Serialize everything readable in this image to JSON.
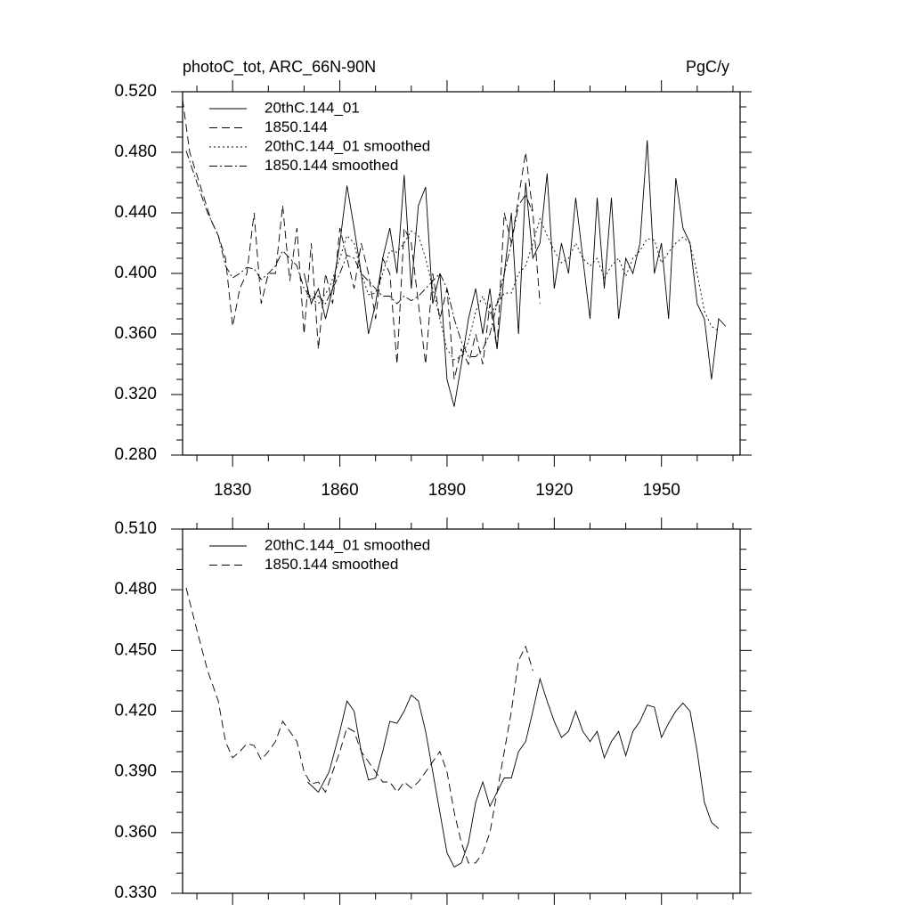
{
  "chart_data": [
    {
      "type": "line",
      "title": "photoC_tot, ARC_66N-90N",
      "y_units": "PgC/y",
      "xlim": [
        1816,
        1972
      ],
      "xticks": [
        1830,
        1860,
        1890,
        1920,
        1950
      ],
      "xminorticks": [
        1820,
        1840,
        1850,
        1870,
        1880,
        1900,
        1910,
        1930,
        1940,
        1960,
        1970
      ],
      "ylim": [
        0.28,
        0.52
      ],
      "yticks": [
        {
          "value": 0.28,
          "label": "0.280"
        },
        {
          "value": 0.32,
          "label": "0.320"
        },
        {
          "value": 0.36,
          "label": "0.360"
        },
        {
          "value": 0.4,
          "label": "0.400"
        },
        {
          "value": 0.44,
          "label": "0.440"
        },
        {
          "value": 0.48,
          "label": "0.480"
        },
        {
          "value": 0.52,
          "label": "0.520"
        }
      ],
      "yminorticks": [
        0.29,
        0.3,
        0.31,
        0.33,
        0.34,
        0.35,
        0.37,
        0.38,
        0.39,
        0.41,
        0.42,
        0.43,
        0.45,
        0.46,
        0.47,
        0.49,
        0.5,
        0.51
      ],
      "series": [
        {
          "name": "20thC.144_01",
          "color": "#000000",
          "line_style": "solid",
          "x": [
            1850,
            1852,
            1854,
            1856,
            1858,
            1860,
            1862,
            1864,
            1866,
            1868,
            1870,
            1872,
            1874,
            1876,
            1878,
            1880,
            1882,
            1884,
            1886,
            1888,
            1890,
            1892,
            1894,
            1896,
            1898,
            1900,
            1902,
            1904,
            1906,
            1908,
            1910,
            1912,
            1914,
            1916,
            1918,
            1920,
            1922,
            1924,
            1926,
            1928,
            1930,
            1932,
            1934,
            1936,
            1938,
            1940,
            1942,
            1944,
            1946,
            1948,
            1950,
            1952,
            1954,
            1956,
            1958,
            1960,
            1962,
            1964,
            1966,
            1968
          ],
          "values": [
            0.4,
            0.38,
            0.39,
            0.37,
            0.39,
            0.42,
            0.458,
            0.43,
            0.4,
            0.36,
            0.38,
            0.41,
            0.43,
            0.4,
            0.465,
            0.39,
            0.445,
            0.457,
            0.38,
            0.4,
            0.33,
            0.312,
            0.34,
            0.37,
            0.39,
            0.36,
            0.39,
            0.35,
            0.4,
            0.44,
            0.36,
            0.46,
            0.41,
            0.42,
            0.466,
            0.39,
            0.42,
            0.4,
            0.45,
            0.41,
            0.37,
            0.45,
            0.39,
            0.45,
            0.37,
            0.41,
            0.4,
            0.42,
            0.488,
            0.4,
            0.42,
            0.37,
            0.463,
            0.43,
            0.42,
            0.38,
            0.37,
            0.33,
            0.37,
            0.365
          ]
        },
        {
          "name": "1850.144",
          "color": "#000000",
          "line_style": "dashed",
          "x": [
            1816,
            1818,
            1820,
            1822,
            1824,
            1826,
            1828,
            1830,
            1832,
            1834,
            1836,
            1838,
            1840,
            1842,
            1844,
            1846,
            1848,
            1850,
            1852,
            1854,
            1856,
            1858,
            1860,
            1862,
            1864,
            1866,
            1868,
            1870,
            1872,
            1874,
            1876,
            1878,
            1880,
            1882,
            1884,
            1886,
            1888,
            1890,
            1892,
            1894,
            1896,
            1898,
            1900,
            1902,
            1904,
            1906,
            1908,
            1910,
            1912,
            1914,
            1916
          ],
          "values": [
            0.515,
            0.48,
            0.465,
            0.45,
            0.435,
            0.425,
            0.41,
            0.365,
            0.39,
            0.4,
            0.44,
            0.38,
            0.4,
            0.4,
            0.445,
            0.395,
            0.43,
            0.36,
            0.42,
            0.35,
            0.4,
            0.38,
            0.43,
            0.41,
            0.39,
            0.42,
            0.4,
            0.37,
            0.41,
            0.4,
            0.34,
            0.43,
            0.42,
            0.38,
            0.34,
            0.4,
            0.37,
            0.39,
            0.33,
            0.35,
            0.34,
            0.36,
            0.34,
            0.38,
            0.35,
            0.44,
            0.42,
            0.45,
            0.48,
            0.44,
            0.38
          ]
        },
        {
          "name": "20thC.144_01 smoothed",
          "color": "#000000",
          "line_style": "dotted",
          "x": [
            1851,
            1854,
            1857,
            1860,
            1862,
            1864,
            1866,
            1868,
            1870,
            1872,
            1874,
            1876,
            1878,
            1880,
            1882,
            1884,
            1886,
            1888,
            1890,
            1892,
            1894,
            1896,
            1898,
            1900,
            1902,
            1904,
            1906,
            1908,
            1910,
            1912,
            1914,
            1916,
            1918,
            1920,
            1922,
            1924,
            1926,
            1928,
            1930,
            1932,
            1934,
            1936,
            1938,
            1940,
            1942,
            1944,
            1946,
            1948,
            1950,
            1952,
            1954,
            1956,
            1958,
            1960,
            1962,
            1964,
            1966
          ],
          "values": [
            0.385,
            0.38,
            0.39,
            0.41,
            0.425,
            0.42,
            0.4,
            0.386,
            0.387,
            0.4,
            0.415,
            0.414,
            0.42,
            0.428,
            0.425,
            0.41,
            0.39,
            0.37,
            0.35,
            0.343,
            0.345,
            0.355,
            0.375,
            0.385,
            0.373,
            0.38,
            0.387,
            0.387,
            0.4,
            0.405,
            0.42,
            0.436,
            0.425,
            0.415,
            0.407,
            0.41,
            0.42,
            0.41,
            0.405,
            0.41,
            0.397,
            0.405,
            0.41,
            0.398,
            0.41,
            0.415,
            0.423,
            0.422,
            0.407,
            0.414,
            0.42,
            0.424,
            0.42,
            0.4,
            0.375,
            0.365,
            0.362
          ]
        },
        {
          "name": "1850.144 smoothed",
          "color": "#000000",
          "line_style": "dashdot",
          "x": [
            1817,
            1820,
            1823,
            1826,
            1828,
            1830,
            1832,
            1834,
            1836,
            1838,
            1840,
            1842,
            1844,
            1846,
            1848,
            1850,
            1852,
            1854,
            1856,
            1858,
            1860,
            1862,
            1864,
            1866,
            1868,
            1870,
            1872,
            1874,
            1876,
            1878,
            1880,
            1882,
            1884,
            1886,
            1888,
            1890,
            1892,
            1894,
            1896,
            1898,
            1900,
            1902,
            1904,
            1906,
            1908,
            1910,
            1912,
            1914
          ],
          "values": [
            0.481,
            0.46,
            0.44,
            0.425,
            0.405,
            0.397,
            0.4,
            0.404,
            0.403,
            0.396,
            0.4,
            0.405,
            0.415,
            0.41,
            0.405,
            0.39,
            0.384,
            0.385,
            0.38,
            0.39,
            0.4,
            0.412,
            0.41,
            0.4,
            0.395,
            0.39,
            0.385,
            0.385,
            0.38,
            0.385,
            0.382,
            0.385,
            0.39,
            0.395,
            0.4,
            0.39,
            0.37,
            0.355,
            0.345,
            0.345,
            0.35,
            0.36,
            0.38,
            0.4,
            0.42,
            0.445,
            0.452,
            0.44
          ]
        }
      ]
    },
    {
      "type": "line",
      "xlim": [
        1816,
        1972
      ],
      "xticks": [
        1830,
        1860,
        1890,
        1920,
        1950
      ],
      "xminorticks": [
        1820,
        1840,
        1850,
        1870,
        1880,
        1900,
        1910,
        1930,
        1940,
        1960,
        1970
      ],
      "ylim": [
        0.33,
        0.51
      ],
      "yticks": [
        {
          "value": 0.33,
          "label": "0.330"
        },
        {
          "value": 0.36,
          "label": "0.360"
        },
        {
          "value": 0.39,
          "label": "0.390"
        },
        {
          "value": 0.42,
          "label": "0.420"
        },
        {
          "value": 0.45,
          "label": "0.450"
        },
        {
          "value": 0.48,
          "label": "0.480"
        },
        {
          "value": 0.51,
          "label": "0.510"
        }
      ],
      "yminorticks": [
        0.34,
        0.35,
        0.37,
        0.38,
        0.4,
        0.41,
        0.43,
        0.44,
        0.46,
        0.47,
        0.49,
        0.5
      ],
      "series": [
        {
          "name": "20thC.144_01 smoothed",
          "color": "#000000",
          "line_style": "solid",
          "x": [
            1851,
            1854,
            1857,
            1860,
            1862,
            1864,
            1866,
            1868,
            1870,
            1872,
            1874,
            1876,
            1878,
            1880,
            1882,
            1884,
            1886,
            1888,
            1890,
            1892,
            1894,
            1896,
            1898,
            1900,
            1902,
            1904,
            1906,
            1908,
            1910,
            1912,
            1914,
            1916,
            1918,
            1920,
            1922,
            1924,
            1926,
            1928,
            1930,
            1932,
            1934,
            1936,
            1938,
            1940,
            1942,
            1944,
            1946,
            1948,
            1950,
            1952,
            1954,
            1956,
            1958,
            1960,
            1962,
            1964,
            1966
          ],
          "values": [
            0.385,
            0.38,
            0.39,
            0.41,
            0.425,
            0.42,
            0.4,
            0.386,
            0.387,
            0.4,
            0.415,
            0.414,
            0.42,
            0.428,
            0.425,
            0.41,
            0.39,
            0.37,
            0.35,
            0.343,
            0.345,
            0.355,
            0.375,
            0.385,
            0.373,
            0.38,
            0.387,
            0.387,
            0.4,
            0.405,
            0.42,
            0.436,
            0.425,
            0.415,
            0.407,
            0.41,
            0.42,
            0.41,
            0.405,
            0.41,
            0.397,
            0.405,
            0.41,
            0.398,
            0.41,
            0.415,
            0.423,
            0.422,
            0.407,
            0.414,
            0.42,
            0.424,
            0.42,
            0.4,
            0.375,
            0.365,
            0.362
          ]
        },
        {
          "name": "1850.144 smoothed",
          "color": "#000000",
          "line_style": "dashed",
          "x": [
            1817,
            1820,
            1823,
            1826,
            1828,
            1830,
            1832,
            1834,
            1836,
            1838,
            1840,
            1842,
            1844,
            1846,
            1848,
            1850,
            1852,
            1854,
            1856,
            1858,
            1860,
            1862,
            1864,
            1866,
            1868,
            1870,
            1872,
            1874,
            1876,
            1878,
            1880,
            1882,
            1884,
            1886,
            1888,
            1890,
            1892,
            1894,
            1896,
            1898,
            1900,
            1902,
            1904,
            1906,
            1908,
            1910,
            1912,
            1914
          ],
          "values": [
            0.481,
            0.46,
            0.44,
            0.425,
            0.405,
            0.397,
            0.4,
            0.404,
            0.403,
            0.396,
            0.4,
            0.405,
            0.415,
            0.41,
            0.405,
            0.39,
            0.384,
            0.385,
            0.38,
            0.39,
            0.4,
            0.412,
            0.41,
            0.4,
            0.395,
            0.39,
            0.385,
            0.385,
            0.38,
            0.385,
            0.382,
            0.385,
            0.39,
            0.395,
            0.4,
            0.39,
            0.37,
            0.355,
            0.345,
            0.345,
            0.35,
            0.36,
            0.38,
            0.4,
            0.42,
            0.445,
            0.452,
            0.44
          ]
        }
      ]
    }
  ]
}
